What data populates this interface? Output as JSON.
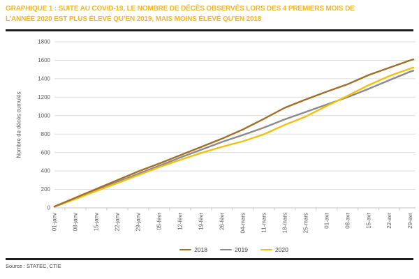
{
  "header": {
    "title_line1": "GRAPHIQUE 1 : SUITE AU COVID-19, LE NOMBRE DE DÉCÈS OBSERVÉS LORS DES 4 PREMIERS MOIS DE",
    "title_line2": "L’ANNÉE 2020 EST PLUS ÉLEVÉ QU’EN 2019, MAIS MOINS ÉLEVÉ QU’EN 2018",
    "title_color": "#F0B728"
  },
  "footer": {
    "source": "Source : STATEC, CTIE"
  },
  "chart_data": {
    "type": "line",
    "ylabel": "Nombre de décès cumulés",
    "ylim": [
      0,
      1800
    ],
    "ytick_step": 200,
    "grid": true,
    "legend_position": "bottom-center",
    "x_tick_labels": [
      "01-janv",
      "08-janv",
      "15-janv",
      "22-janv",
      "29-janv",
      "05-févr",
      "12-févr",
      "19-févr",
      "26-févr",
      "04-mars",
      "11-mars",
      "18-mars",
      "25-mars",
      "01-avr",
      "08-avr",
      "15-avr",
      "22-avr",
      "29-avr"
    ],
    "x_tick_days": [
      1,
      8,
      15,
      22,
      29,
      36,
      43,
      50,
      57,
      64,
      71,
      78,
      85,
      92,
      99,
      106,
      113,
      120
    ],
    "x_range_days": [
      1,
      121
    ],
    "x_days": [
      1,
      8,
      15,
      22,
      29,
      36,
      43,
      50,
      57,
      64,
      71,
      78,
      85,
      92,
      99,
      106,
      113,
      120,
      121
    ],
    "series": [
      {
        "name": "2018",
        "color": "#A06E2A",
        "values": [
          14,
          110,
          205,
          300,
          395,
          480,
          570,
          660,
          750,
          850,
          965,
          1085,
          1175,
          1260,
          1340,
          1440,
          1520,
          1600,
          1610
        ]
      },
      {
        "name": "2019",
        "color": "#8A8A8A",
        "values": [
          13,
          100,
          190,
          280,
          370,
          455,
          545,
          630,
          715,
          790,
          870,
          960,
          1040,
          1120,
          1200,
          1290,
          1385,
          1478,
          1488
        ]
      },
      {
        "name": "2020",
        "color": "#F2C011",
        "values": [
          12,
          95,
          182,
          268,
          355,
          440,
          520,
          595,
          662,
          722,
          797,
          900,
          990,
          1105,
          1215,
          1330,
          1430,
          1512,
          1522
        ]
      }
    ],
    "draw_order": [
      1,
      2,
      0
    ],
    "axis_color": "#C6C6C6",
    "grid_color": "#DDDDDD",
    "tick_text_color": "#595959"
  }
}
